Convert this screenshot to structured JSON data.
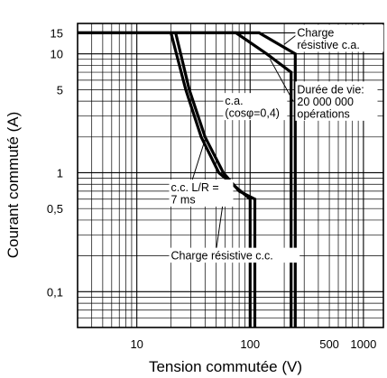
{
  "chart_data": {
    "type": "line",
    "title": "",
    "xlabel": "Tension commutée (V)",
    "ylabel": "Courant commuté (A)",
    "xscale": "log",
    "yscale": "log",
    "xlim": [
      3,
      1500
    ],
    "ylim": [
      0.05,
      18
    ],
    "x_ticks": [
      {
        "value": 10,
        "label": "10"
      },
      {
        "value": 100,
        "label": "100"
      },
      {
        "value": 500,
        "label": "500"
      },
      {
        "value": 1000,
        "label": "1000"
      }
    ],
    "y_ticks": [
      {
        "value": 15,
        "label": "15"
      },
      {
        "value": 10,
        "label": "10"
      },
      {
        "value": 5,
        "label": "5"
      },
      {
        "value": 1,
        "label": "1"
      },
      {
        "value": 0.5,
        "label": "0,5"
      },
      {
        "value": 0.1,
        "label": "0,1"
      }
    ],
    "grid": true,
    "series": [
      {
        "name": "Charge résistive c.a.",
        "points": [
          [
            3,
            15
          ],
          [
            120,
            15
          ],
          [
            250,
            10
          ],
          [
            250,
            0.05
          ]
        ]
      },
      {
        "name": "c.a. (cosφ=0,4)",
        "points": [
          [
            3,
            15
          ],
          [
            75,
            15
          ],
          [
            140,
            10
          ],
          [
            230,
            7
          ],
          [
            230,
            0.05
          ]
        ]
      },
      {
        "name": "c.c. L/R = 7 ms",
        "points": [
          [
            20,
            15
          ],
          [
            27,
            5
          ],
          [
            37,
            2
          ],
          [
            53,
            1
          ],
          [
            70,
            0.8
          ],
          [
            100,
            0.6
          ],
          [
            100,
            0.05
          ]
        ]
      },
      {
        "name": "Charge résistive c.c.",
        "points": [
          [
            22,
            15
          ],
          [
            29,
            5
          ],
          [
            40,
            2
          ],
          [
            58,
            1
          ],
          [
            80,
            0.7
          ],
          [
            110,
            0.6
          ],
          [
            110,
            0.05
          ]
        ]
      }
    ],
    "annotations": [
      {
        "lines": [
          "Charge",
          "résistive c.a."
        ],
        "x": 260,
        "y": 15
      },
      {
        "lines": [
          "Durée de vie:",
          "20 000 000",
          "opérations"
        ],
        "x": 260,
        "y": 5
      },
      {
        "lines": [
          "c.a.",
          "(cosφ=0,4)"
        ],
        "x": 60,
        "y": 4
      },
      {
        "lines": [
          "c.c. L/R =",
          "7 ms"
        ],
        "x": 20,
        "y": 0.75
      },
      {
        "lines": [
          "Charge résistive c.c."
        ],
        "x": 20,
        "y": 0.2
      }
    ]
  }
}
